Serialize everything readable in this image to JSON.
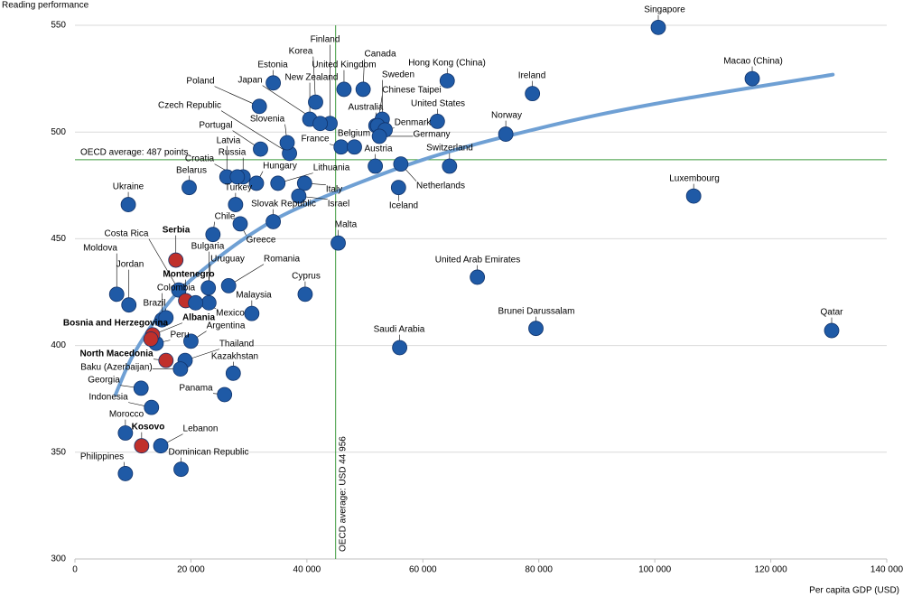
{
  "chart_data": {
    "type": "scatter",
    "y_label": "Reading performance",
    "x_label": "Per capita GDP (USD)",
    "xlim": [
      0,
      140000
    ],
    "ylim": [
      300,
      550
    ],
    "xticks": [
      0,
      {
        "value": 20000,
        "label": "20 000"
      },
      {
        "value": 40000,
        "label": "40 000"
      },
      {
        "value": 60000,
        "label": "60 000"
      },
      {
        "value": 80000,
        "label": "80 000"
      },
      {
        "value": 100000,
        "label": "100 000"
      },
      {
        "value": 120000,
        "label": "120 000"
      },
      {
        "value": 140000,
        "label": "140 000"
      }
    ],
    "yticks": [
      300,
      350,
      400,
      450,
      500,
      550
    ],
    "grid": true,
    "reference": {
      "y": 487,
      "y_label": "OECD average: 487 points",
      "x": 44956,
      "x_label": "OECD average: USD 44 956",
      "color": "#3c9a3c"
    },
    "trend_line": {
      "color": "#6fa0d4",
      "x": [
        7000,
        10000,
        15000,
        20000,
        30000,
        40000,
        60000,
        80000,
        100000,
        130700
      ],
      "values": [
        377.0,
        395.3,
        416.0,
        430.7,
        451.5,
        466.2,
        487.0,
        501.7,
        513.2,
        526.9
      ]
    },
    "points": [
      {
        "label": "Singapore",
        "x": 100600,
        "y": 549,
        "color": "#1f5aa6"
      },
      {
        "label": "Macao (China)",
        "x": 116800,
        "y": 525,
        "color": "#1f5aa6"
      },
      {
        "label": "Ireland",
        "x": 78900,
        "y": 518,
        "color": "#1f5aa6"
      },
      {
        "label": "Hong Kong (China)",
        "x": 64200,
        "y": 524,
        "color": "#1f5aa6"
      },
      {
        "label": "Canada",
        "x": 49700,
        "y": 520,
        "color": "#1f5aa6"
      },
      {
        "label": "United Kingdom",
        "x": 46400,
        "y": 520,
        "color": "#1f5aa6"
      },
      {
        "label": "Finland",
        "x": 44000,
        "y": 504,
        "color": "#1f5aa6"
      },
      {
        "label": "Korea",
        "x": 41500,
        "y": 514,
        "color": "#1f5aa6"
      },
      {
        "label": "New Zealand",
        "x": 40500,
        "y": 506,
        "color": "#1f5aa6"
      },
      {
        "label": "Estonia",
        "x": 34200,
        "y": 523,
        "color": "#1f5aa6"
      },
      {
        "label": "Japan",
        "x": 42300,
        "y": 504,
        "color": "#1f5aa6"
      },
      {
        "label": "Poland",
        "x": 31800,
        "y": 512,
        "color": "#1f5aa6"
      },
      {
        "label": "Czech Republic",
        "x": 37000,
        "y": 490,
        "color": "#1f5aa6"
      },
      {
        "label": "Slovenia",
        "x": 36600,
        "y": 495,
        "color": "#1f5aa6"
      },
      {
        "label": "Portugal",
        "x": 32000,
        "y": 492,
        "color": "#1f5aa6"
      },
      {
        "label": "France",
        "x": 45900,
        "y": 493,
        "color": "#1f5aa6"
      },
      {
        "label": "Belgium",
        "x": 48200,
        "y": 493,
        "color": "#1f5aa6"
      },
      {
        "label": "Austria",
        "x": 51800,
        "y": 484,
        "color": "#1f5aa6"
      },
      {
        "label": "Australia",
        "x": 51900,
        "y": 503,
        "color": "#1f5aa6"
      },
      {
        "label": "Sweden",
        "x": 53000,
        "y": 506,
        "color": "#1f5aa6"
      },
      {
        "label": "Chinese Taipei",
        "x": 52200,
        "y": 503,
        "color": "#1f5aa6"
      },
      {
        "label": "Denmark",
        "x": 53500,
        "y": 501,
        "color": "#1f5aa6"
      },
      {
        "label": "Germany",
        "x": 52500,
        "y": 498,
        "color": "#1f5aa6"
      },
      {
        "label": "United States",
        "x": 62500,
        "y": 505,
        "color": "#1f5aa6"
      },
      {
        "label": "Norway",
        "x": 74300,
        "y": 499,
        "color": "#1f5aa6"
      },
      {
        "label": "Switzerland",
        "x": 64600,
        "y": 484,
        "color": "#1f5aa6"
      },
      {
        "label": "Netherlands",
        "x": 56200,
        "y": 485,
        "color": "#1f5aa6"
      },
      {
        "label": "Iceland",
        "x": 55800,
        "y": 474,
        "color": "#1f5aa6"
      },
      {
        "label": "Luxembourg",
        "x": 106700,
        "y": 470,
        "color": "#1f5aa6"
      },
      {
        "label": "Latvia",
        "x": 26200,
        "y": 479,
        "color": "#1f5aa6"
      },
      {
        "label": "Russia",
        "x": 29000,
        "y": 479,
        "color": "#1f5aa6"
      },
      {
        "label": "Croatia",
        "x": 28000,
        "y": 479,
        "color": "#1f5aa6"
      },
      {
        "label": "Hungary",
        "x": 31300,
        "y": 476,
        "color": "#1f5aa6"
      },
      {
        "label": "Lithuania",
        "x": 35000,
        "y": 476,
        "color": "#1f5aa6"
      },
      {
        "label": "Italy",
        "x": 39600,
        "y": 476,
        "color": "#1f5aa6"
      },
      {
        "label": "Israel",
        "x": 38600,
        "y": 470,
        "color": "#1f5aa6"
      },
      {
        "label": "Turkey",
        "x": 27700,
        "y": 466,
        "color": "#1f5aa6"
      },
      {
        "label": "Slovak Republic",
        "x": 34200,
        "y": 458,
        "color": "#1f5aa6"
      },
      {
        "label": "Belarus",
        "x": 19700,
        "y": 474,
        "color": "#1f5aa6"
      },
      {
        "label": "Ukraine",
        "x": 9200,
        "y": 466,
        "color": "#1f5aa6"
      },
      {
        "label": "Chile",
        "x": 23800,
        "y": 452,
        "color": "#1f5aa6"
      },
      {
        "label": "Greece",
        "x": 28500,
        "y": 457,
        "color": "#1f5aa6"
      },
      {
        "label": "Malta",
        "x": 45400,
        "y": 448,
        "color": "#1f5aa6"
      },
      {
        "label": "Costa Rica",
        "x": 17900,
        "y": 426,
        "color": "#1f5aa6"
      },
      {
        "label": "Serbia",
        "x": 17400,
        "y": 440,
        "color": "#c0302b",
        "bold": true
      },
      {
        "label": "Moldova",
        "x": 7200,
        "y": 424,
        "color": "#1f5aa6"
      },
      {
        "label": "Jordan",
        "x": 9300,
        "y": 419,
        "color": "#1f5aa6"
      },
      {
        "label": "Montenegro",
        "x": 19100,
        "y": 421,
        "color": "#c0302b",
        "bold": true
      },
      {
        "label": "Bulgaria",
        "x": 23100,
        "y": 420,
        "color": "#1f5aa6"
      },
      {
        "label": "Uruguay",
        "x": 23000,
        "y": 427,
        "color": "#1f5aa6"
      },
      {
        "label": "Romania",
        "x": 26500,
        "y": 428,
        "color": "#1f5aa6"
      },
      {
        "label": "Cyprus",
        "x": 39700,
        "y": 424,
        "color": "#1f5aa6"
      },
      {
        "label": "Colombia",
        "x": 15000,
        "y": 412,
        "color": "#1f5aa6"
      },
      {
        "label": "Brazil",
        "x": 15700,
        "y": 413,
        "color": "#1f5aa6"
      },
      {
        "label": "Mexico",
        "x": 20800,
        "y": 420,
        "color": "#1f5aa6"
      },
      {
        "label": "Malaysia",
        "x": 30500,
        "y": 415,
        "color": "#1f5aa6"
      },
      {
        "label": "Argentina",
        "x": 20000,
        "y": 402,
        "color": "#1f5aa6"
      },
      {
        "label": "Peru",
        "x": 14000,
        "y": 401,
        "color": "#1f5aa6"
      },
      {
        "label": "Albania",
        "x": 13400,
        "y": 405,
        "color": "#c0302b",
        "bold": true
      },
      {
        "label": "Bosnia and Herzegovina",
        "x": 13100,
        "y": 403,
        "color": "#c0302b",
        "bold": true
      },
      {
        "label": "Thailand",
        "x": 19000,
        "y": 393,
        "color": "#1f5aa6"
      },
      {
        "label": "Baku (Azerbaijan)",
        "x": 18200,
        "y": 389,
        "color": "#1f5aa6"
      },
      {
        "label": "North Macedonia",
        "x": 15700,
        "y": 393,
        "color": "#c0302b",
        "bold": true
      },
      {
        "label": "Kazakhstan",
        "x": 27300,
        "y": 387,
        "color": "#1f5aa6"
      },
      {
        "label": "Panama",
        "x": 25800,
        "y": 377,
        "color": "#1f5aa6"
      },
      {
        "label": "Georgia",
        "x": 11400,
        "y": 380,
        "color": "#1f5aa6"
      },
      {
        "label": "Indonesia",
        "x": 13200,
        "y": 371,
        "color": "#1f5aa6"
      },
      {
        "label": "Morocco",
        "x": 8700,
        "y": 359,
        "color": "#1f5aa6"
      },
      {
        "label": "Kosovo",
        "x": 11500,
        "y": 353,
        "color": "#c0302b",
        "bold": true
      },
      {
        "label": "Lebanon",
        "x": 14800,
        "y": 353,
        "color": "#1f5aa6"
      },
      {
        "label": "Dominican Republic",
        "x": 18300,
        "y": 342,
        "color": "#1f5aa6"
      },
      {
        "label": "Philippines",
        "x": 8700,
        "y": 340,
        "color": "#1f5aa6"
      },
      {
        "label": "United Arab Emirates",
        "x": 69400,
        "y": 432,
        "color": "#1f5aa6"
      },
      {
        "label": "Brunei Darussalam",
        "x": 79500,
        "y": 408,
        "color": "#1f5aa6"
      },
      {
        "label": "Qatar",
        "x": 130500,
        "y": 407,
        "color": "#1f5aa6"
      },
      {
        "label": "Saudi Arabia",
        "x": 56000,
        "y": 399,
        "color": "#1f5aa6"
      }
    ]
  }
}
